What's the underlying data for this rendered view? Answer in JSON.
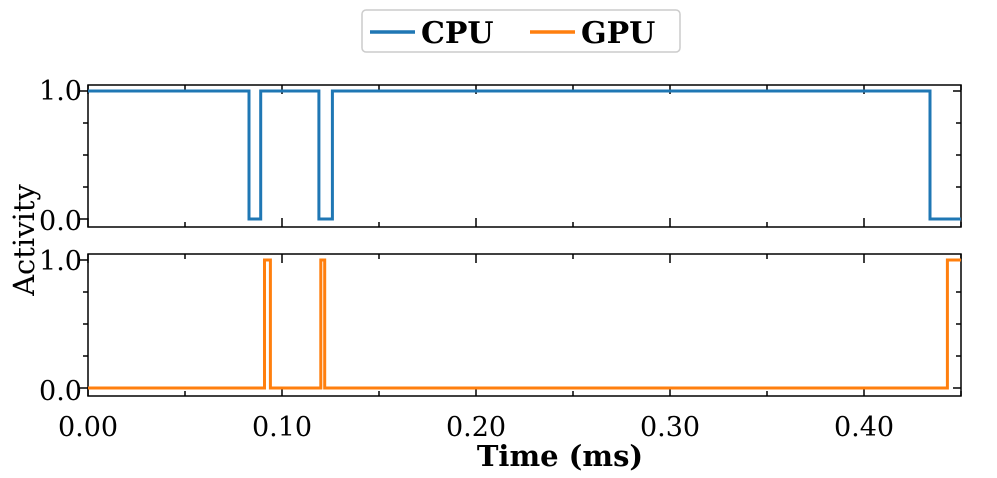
{
  "chart_data": {
    "type": "line",
    "drawstyle": "steps",
    "legend": {
      "placement": "top-center",
      "entries": [
        {
          "label": "CPU",
          "color": "#1f77b4"
        },
        {
          "label": "GPU",
          "color": "#ff7f0e"
        }
      ]
    },
    "xlabel": "Time (ms)",
    "ylabel": "Activity",
    "xlim": [
      0.0,
      0.45
    ],
    "x_ticks": [
      "0.00",
      "0.10",
      "0.20",
      "0.30",
      "0.40"
    ],
    "y_ticks": [
      "0.0",
      "1.0"
    ],
    "ylim": [
      0.0,
      1.0
    ],
    "grid": false,
    "series": [
      {
        "name": "CPU",
        "color": "#1f77b4",
        "x": [
          0.0,
          0.083,
          0.083,
          0.089,
          0.089,
          0.119,
          0.119,
          0.126,
          0.126,
          0.434,
          0.434,
          0.45
        ],
        "y": [
          1,
          1,
          0,
          0,
          1,
          1,
          0,
          0,
          1,
          1,
          0,
          0
        ]
      },
      {
        "name": "GPU",
        "color": "#ff7f0e",
        "x": [
          0.0,
          0.091,
          0.091,
          0.094,
          0.094,
          0.12,
          0.12,
          0.122,
          0.122,
          0.443,
          0.443,
          0.45
        ],
        "y": [
          0,
          0,
          1,
          1,
          0,
          0,
          1,
          1,
          0,
          0,
          1,
          1
        ]
      }
    ]
  }
}
